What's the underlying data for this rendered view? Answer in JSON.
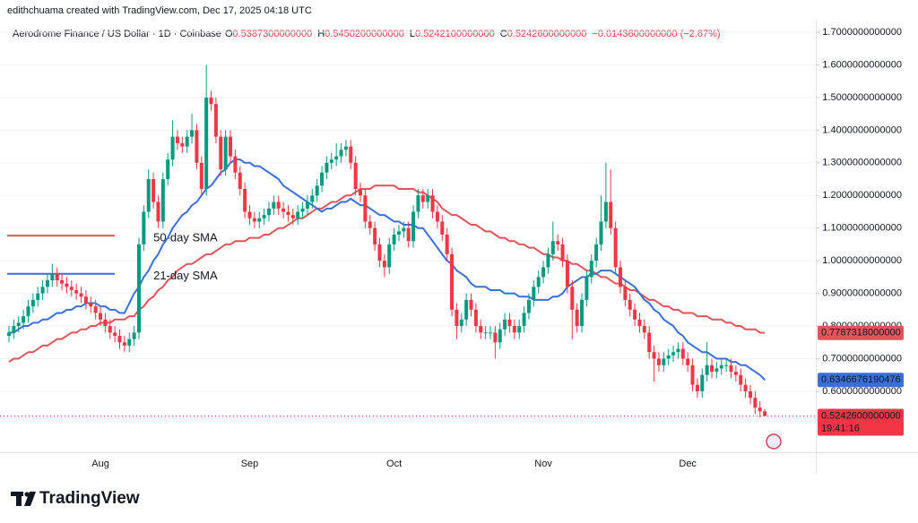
{
  "header": {
    "credit": "edithchuama created with TradingView.com, Dec 17, 2025 04:18 UTC"
  },
  "chart_data": {
    "type": "candlestick",
    "symbol": "Aerodrome Finance / US Dollar · 1D · Coinbase",
    "ohlc_legend": [
      {
        "key": "O",
        "value": "0.5387300000000"
      },
      {
        "key": "H",
        "value": "0.5450200000000"
      },
      {
        "key": "L",
        "value": "0.5242100000000"
      },
      {
        "key": "C",
        "value": "0.5242600000000"
      }
    ],
    "change": "−0.0143600000000 (−2.67%)",
    "categories": [
      null,
      null,
      null,
      null,
      null,
      null,
      null,
      null,
      null,
      null,
      null,
      null,
      null,
      null,
      null,
      null,
      null,
      null,
      null,
      "Aug",
      null,
      null,
      null,
      null,
      null,
      null,
      null,
      null,
      null,
      null,
      null,
      null,
      null,
      null,
      null,
      null,
      null,
      null,
      null,
      null,
      null,
      null,
      null,
      null,
      null,
      null,
      null,
      null,
      null,
      null,
      "Sep",
      null,
      null,
      null,
      null,
      null,
      null,
      null,
      null,
      null,
      null,
      null,
      null,
      null,
      null,
      null,
      null,
      null,
      null,
      null,
      null,
      null,
      null,
      null,
      null,
      null,
      null,
      null,
      null,
      null,
      "Oct",
      null,
      null,
      null,
      null,
      null,
      null,
      null,
      null,
      null,
      null,
      null,
      null,
      null,
      null,
      null,
      null,
      null,
      null,
      null,
      null,
      null,
      null,
      null,
      null,
      null,
      null,
      null,
      null,
      null,
      null,
      "Nov",
      null,
      null,
      null,
      null,
      null,
      null,
      null,
      null,
      null,
      null,
      null,
      null,
      null,
      null,
      null,
      null,
      null,
      null,
      null,
      null,
      null,
      null,
      null,
      null,
      null,
      null,
      null,
      null,
      null,
      "Dec",
      null,
      null,
      null,
      null,
      null,
      null,
      null,
      null,
      null,
      null,
      null,
      null,
      null,
      null,
      null,
      null
    ],
    "open": [
      0.77,
      0.78,
      0.8,
      0.81,
      0.83,
      0.86,
      0.88,
      0.9,
      0.92,
      0.94,
      0.96,
      0.94,
      0.93,
      0.92,
      0.91,
      0.9,
      0.89,
      0.87,
      0.86,
      0.84,
      0.82,
      0.8,
      0.78,
      0.77,
      0.75,
      0.74,
      0.76,
      0.78,
      1.05,
      1.15,
      1.25,
      1.18,
      1.12,
      1.25,
      1.31,
      1.38,
      1.36,
      1.35,
      1.38,
      1.4,
      1.3,
      1.22,
      1.5,
      1.48,
      1.38,
      1.28,
      1.38,
      1.32,
      1.27,
      1.22,
      1.15,
      1.13,
      1.12,
      1.13,
      1.14,
      1.16,
      1.18,
      1.16,
      1.15,
      1.14,
      1.13,
      1.15,
      1.16,
      1.18,
      1.2,
      1.23,
      1.27,
      1.3,
      1.31,
      1.32,
      1.34,
      1.35,
      1.3,
      1.22,
      1.2,
      1.12,
      1.1,
      1.05,
      1.0,
      0.98,
      1.05,
      1.08,
      1.09,
      1.1,
      1.06,
      1.15,
      1.2,
      1.18,
      1.2,
      1.15,
      1.12,
      1.08,
      1.02,
      0.85,
      0.8,
      0.82,
      0.88,
      0.85,
      0.8,
      0.78,
      0.78,
      0.78,
      0.75,
      0.79,
      0.82,
      0.8,
      0.78,
      0.8,
      0.84,
      0.88,
      0.92,
      0.95,
      0.98,
      1.02,
      1.06,
      1.05,
      1.0,
      0.92,
      0.85,
      0.8,
      0.88,
      0.95,
      1.0,
      1.05,
      1.12,
      1.18,
      1.1,
      0.98,
      0.92,
      0.88,
      0.85,
      0.82,
      0.8,
      0.78,
      0.72,
      0.7,
      0.68,
      0.7,
      0.71,
      0.72,
      0.73,
      0.7,
      0.68,
      0.62,
      0.6,
      0.65,
      0.68,
      0.66,
      0.67,
      0.68,
      0.68,
      0.66,
      0.65,
      0.62,
      0.6,
      0.58,
      0.55,
      0.53873
    ],
    "high": [
      0.8,
      0.82,
      0.83,
      0.85,
      0.88,
      0.9,
      0.92,
      0.94,
      0.96,
      0.99,
      0.98,
      0.96,
      0.95,
      0.94,
      0.93,
      0.92,
      0.91,
      0.89,
      0.88,
      0.86,
      0.84,
      0.82,
      0.8,
      0.79,
      0.77,
      0.78,
      0.8,
      1.07,
      1.17,
      1.28,
      1.27,
      1.2,
      1.27,
      1.33,
      1.43,
      1.4,
      1.38,
      1.4,
      1.45,
      1.42,
      1.32,
      1.6,
      1.52,
      1.5,
      1.4,
      1.4,
      1.4,
      1.34,
      1.29,
      1.24,
      1.17,
      1.15,
      1.15,
      1.16,
      1.18,
      1.2,
      1.2,
      1.18,
      1.17,
      1.16,
      1.17,
      1.18,
      1.2,
      1.22,
      1.25,
      1.29,
      1.32,
      1.33,
      1.36,
      1.36,
      1.37,
      1.37,
      1.32,
      1.24,
      1.22,
      1.14,
      1.12,
      1.07,
      1.02,
      1.07,
      1.1,
      1.11,
      1.12,
      1.12,
      1.17,
      1.22,
      1.22,
      1.22,
      1.22,
      1.17,
      1.14,
      1.1,
      1.04,
      0.87,
      0.84,
      0.9,
      0.9,
      0.87,
      0.82,
      0.8,
      0.8,
      0.8,
      0.81,
      0.84,
      0.84,
      0.82,
      0.82,
      0.86,
      0.9,
      0.94,
      0.97,
      1.0,
      1.04,
      1.12,
      1.08,
      1.07,
      1.02,
      0.94,
      0.87,
      0.9,
      0.97,
      1.02,
      1.07,
      1.2,
      1.3,
      1.28,
      1.12,
      1.0,
      0.94,
      0.9,
      0.87,
      0.84,
      0.82,
      0.8,
      0.74,
      0.72,
      0.72,
      0.73,
      0.74,
      0.75,
      0.75,
      0.72,
      0.7,
      0.64,
      0.67,
      0.75,
      0.7,
      0.69,
      0.7,
      0.7,
      0.7,
      0.68,
      0.67,
      0.64,
      0.62,
      0.6,
      0.57,
      0.54502
    ],
    "low": [
      0.75,
      0.76,
      0.78,
      0.79,
      0.81,
      0.84,
      0.86,
      0.88,
      0.9,
      0.92,
      0.92,
      0.91,
      0.9,
      0.89,
      0.88,
      0.87,
      0.85,
      0.84,
      0.82,
      0.8,
      0.78,
      0.76,
      0.75,
      0.73,
      0.72,
      0.72,
      0.74,
      0.76,
      1.03,
      1.13,
      1.16,
      1.1,
      1.1,
      1.23,
      1.29,
      1.34,
      1.33,
      1.33,
      1.36,
      1.28,
      1.2,
      1.2,
      1.46,
      1.36,
      1.26,
      1.26,
      1.3,
      1.25,
      1.2,
      1.13,
      1.11,
      1.1,
      1.1,
      1.11,
      1.12,
      1.14,
      1.14,
      1.13,
      1.12,
      1.11,
      1.11,
      1.13,
      1.14,
      1.16,
      1.18,
      1.21,
      1.25,
      1.28,
      1.29,
      1.3,
      1.32,
      1.28,
      1.2,
      1.18,
      1.1,
      1.08,
      1.03,
      0.98,
      0.95,
      0.96,
      1.03,
      1.06,
      1.07,
      1.04,
      1.04,
      1.13,
      1.16,
      1.16,
      1.13,
      1.1,
      1.06,
      1.0,
      0.83,
      0.76,
      0.78,
      0.8,
      0.83,
      0.78,
      0.76,
      0.76,
      0.76,
      0.7,
      0.73,
      0.77,
      0.78,
      0.76,
      0.76,
      0.78,
      0.82,
      0.86,
      0.9,
      0.93,
      0.96,
      1.0,
      1.03,
      0.98,
      0.9,
      0.76,
      0.78,
      0.78,
      0.86,
      0.93,
      0.98,
      1.03,
      1.1,
      1.08,
      0.96,
      0.9,
      0.86,
      0.83,
      0.8,
      0.78,
      0.76,
      0.7,
      0.63,
      0.66,
      0.66,
      0.68,
      0.69,
      0.7,
      0.68,
      0.66,
      0.6,
      0.58,
      0.58,
      0.63,
      0.64,
      0.64,
      0.65,
      0.66,
      0.64,
      0.63,
      0.6,
      0.58,
      0.56,
      0.53,
      0.52,
      0.52421
    ],
    "close": [
      0.78,
      0.8,
      0.81,
      0.83,
      0.86,
      0.88,
      0.9,
      0.92,
      0.94,
      0.96,
      0.94,
      0.93,
      0.92,
      0.91,
      0.9,
      0.89,
      0.87,
      0.86,
      0.84,
      0.82,
      0.8,
      0.78,
      0.77,
      0.75,
      0.74,
      0.76,
      0.78,
      1.05,
      1.15,
      1.25,
      1.18,
      1.12,
      1.25,
      1.31,
      1.38,
      1.36,
      1.35,
      1.38,
      1.4,
      1.3,
      1.22,
      1.5,
      1.48,
      1.38,
      1.28,
      1.38,
      1.32,
      1.27,
      1.22,
      1.15,
      1.13,
      1.12,
      1.13,
      1.14,
      1.16,
      1.18,
      1.16,
      1.15,
      1.14,
      1.13,
      1.15,
      1.16,
      1.18,
      1.2,
      1.23,
      1.27,
      1.3,
      1.31,
      1.32,
      1.34,
      1.35,
      1.3,
      1.22,
      1.2,
      1.12,
      1.1,
      1.05,
      1.0,
      0.98,
      1.05,
      1.08,
      1.09,
      1.1,
      1.06,
      1.15,
      1.2,
      1.18,
      1.2,
      1.15,
      1.12,
      1.08,
      1.02,
      0.85,
      0.8,
      0.82,
      0.88,
      0.85,
      0.8,
      0.78,
      0.78,
      0.78,
      0.75,
      0.79,
      0.82,
      0.8,
      0.78,
      0.8,
      0.84,
      0.88,
      0.92,
      0.95,
      0.98,
      1.02,
      1.06,
      1.05,
      1.0,
      0.92,
      0.85,
      0.8,
      0.88,
      0.95,
      1.0,
      1.05,
      1.12,
      1.18,
      1.1,
      0.98,
      0.92,
      0.88,
      0.85,
      0.82,
      0.8,
      0.78,
      0.72,
      0.7,
      0.68,
      0.7,
      0.71,
      0.72,
      0.73,
      0.7,
      0.68,
      0.62,
      0.6,
      0.65,
      0.68,
      0.66,
      0.67,
      0.68,
      0.68,
      0.66,
      0.65,
      0.62,
      0.6,
      0.58,
      0.55,
      0.53873,
      0.52426
    ],
    "up_color": "#089981",
    "down_color": "#f23645",
    "last_label": "0.5242600000000",
    "countdown": "19:41:16",
    "series": [
      {
        "name": "50-day SMA",
        "color": "#e0555a",
        "guide_level": 1.077,
        "last_label": "0.7787318000000",
        "values": [
          0.69,
          0.7,
          0.7,
          0.71,
          0.72,
          0.72,
          0.73,
          0.74,
          0.74,
          0.75,
          0.76,
          0.76,
          0.77,
          0.78,
          0.78,
          0.79,
          0.79,
          0.8,
          0.8,
          0.81,
          0.81,
          0.81,
          0.82,
          0.82,
          0.82,
          0.83,
          0.83,
          0.85,
          0.86,
          0.88,
          0.89,
          0.91,
          0.92,
          0.94,
          0.95,
          0.97,
          0.98,
          0.99,
          0.99,
          1.0,
          1.01,
          1.02,
          1.02,
          1.03,
          1.04,
          1.05,
          1.05,
          1.06,
          1.06,
          1.06,
          1.07,
          1.07,
          1.07,
          1.08,
          1.08,
          1.09,
          1.1,
          1.1,
          1.11,
          1.12,
          1.13,
          1.13,
          1.14,
          1.15,
          1.16,
          1.16,
          1.17,
          1.18,
          1.18,
          1.19,
          1.2,
          1.2,
          1.21,
          1.22,
          1.22,
          1.22,
          1.23,
          1.23,
          1.23,
          1.23,
          1.23,
          1.22,
          1.22,
          1.22,
          1.22,
          1.21,
          1.21,
          1.2,
          1.19,
          1.18,
          1.16,
          1.15,
          1.14,
          1.14,
          1.13,
          1.12,
          1.11,
          1.11,
          1.1,
          1.09,
          1.09,
          1.08,
          1.07,
          1.07,
          1.06,
          1.06,
          1.05,
          1.05,
          1.04,
          1.04,
          1.03,
          1.02,
          1.02,
          1.01,
          1.01,
          1.0,
          1.0,
          0.99,
          0.99,
          0.98,
          0.97,
          0.97,
          0.96,
          0.95,
          0.95,
          0.94,
          0.93,
          0.93,
          0.92,
          0.91,
          0.91,
          0.9,
          0.89,
          0.88,
          0.88,
          0.87,
          0.86,
          0.86,
          0.85,
          0.85,
          0.84,
          0.84,
          0.84,
          0.83,
          0.83,
          0.83,
          0.82,
          0.82,
          0.82,
          0.81,
          0.81,
          0.8,
          0.8,
          0.79,
          0.79,
          0.79,
          0.78,
          0.7787318
        ]
      },
      {
        "name": "21-day SMA",
        "color": "#3a6fd8",
        "guide_level": 0.96,
        "last_label": "0.6346676190476",
        "values": [
          0.78,
          0.78,
          0.79,
          0.8,
          0.8,
          0.81,
          0.81,
          0.82,
          0.82,
          0.83,
          0.84,
          0.84,
          0.85,
          0.85,
          0.86,
          0.86,
          0.87,
          0.87,
          0.87,
          0.86,
          0.86,
          0.85,
          0.85,
          0.84,
          0.84,
          0.87,
          0.9,
          0.92,
          0.95,
          0.97,
          1.0,
          1.02,
          1.05,
          1.07,
          1.1,
          1.12,
          1.14,
          1.15,
          1.17,
          1.18,
          1.2,
          1.22,
          1.23,
          1.25,
          1.27,
          1.28,
          1.3,
          1.31,
          1.31,
          1.3,
          1.3,
          1.29,
          1.29,
          1.28,
          1.27,
          1.26,
          1.25,
          1.23,
          1.22,
          1.21,
          1.2,
          1.19,
          1.18,
          1.17,
          1.16,
          1.15,
          1.16,
          1.16,
          1.17,
          1.18,
          1.18,
          1.19,
          1.18,
          1.17,
          1.17,
          1.16,
          1.15,
          1.14,
          1.14,
          1.13,
          1.12,
          1.12,
          1.11,
          1.11,
          1.11,
          1.1,
          1.1,
          1.08,
          1.06,
          1.04,
          1.02,
          1.0,
          0.99,
          0.97,
          0.96,
          0.95,
          0.93,
          0.92,
          0.92,
          0.92,
          0.91,
          0.91,
          0.91,
          0.9,
          0.9,
          0.9,
          0.89,
          0.89,
          0.89,
          0.88,
          0.88,
          0.88,
          0.88,
          0.89,
          0.89,
          0.9,
          0.92,
          0.93,
          0.94,
          0.95,
          0.95,
          0.96,
          0.96,
          0.97,
          0.97,
          0.97,
          0.96,
          0.95,
          0.94,
          0.93,
          0.92,
          0.9,
          0.88,
          0.87,
          0.85,
          0.84,
          0.82,
          0.81,
          0.8,
          0.78,
          0.77,
          0.75,
          0.74,
          0.73,
          0.72,
          0.72,
          0.71,
          0.7,
          0.7,
          0.7,
          0.69,
          0.69,
          0.68,
          0.68,
          0.67,
          0.66,
          0.65,
          0.6346676
        ]
      }
    ],
    "ylim": [
      0.4133,
      1.7384
    ],
    "yticks": [
      {
        "value": 0.6,
        "label": "0.6000000000000"
      },
      {
        "value": 0.7,
        "label": "0.7000000000000"
      },
      {
        "value": 0.8,
        "label": "0.8000000000000"
      },
      {
        "value": 0.9,
        "label": "0.9000000000000"
      },
      {
        "value": 1.0,
        "label": "1.0000000000000"
      },
      {
        "value": 1.1,
        "label": "1.1000000000000"
      },
      {
        "value": 1.2,
        "label": "1.2000000000000"
      },
      {
        "value": 1.3,
        "label": "1.3000000000000"
      },
      {
        "value": 1.4,
        "label": "1.4000000000000"
      },
      {
        "value": 1.5,
        "label": "1.5000000000000"
      },
      {
        "value": 1.6,
        "label": "1.6000000000000"
      },
      {
        "value": 1.7,
        "label": "1.7000000000000"
      }
    ],
    "grid": true
  },
  "footer": {
    "brand": "TradingView"
  }
}
